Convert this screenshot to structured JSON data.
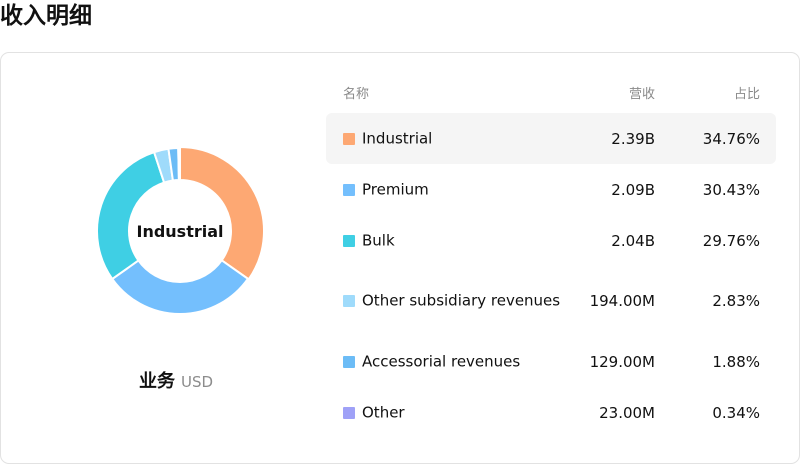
{
  "page": {
    "title": "收入明细"
  },
  "chart_caption": {
    "title": "业务",
    "unit": "USD"
  },
  "table": {
    "headers": {
      "name": "名称",
      "revenue": "营收",
      "share": "占比"
    },
    "rows": [
      {
        "name": "Industrial",
        "revenue": "2.39B",
        "share": "34.76%",
        "color": "#fda873"
      },
      {
        "name": "Premium",
        "revenue": "2.09B",
        "share": "30.43%",
        "color": "#74bffd"
      },
      {
        "name": "Bulk",
        "revenue": "2.04B",
        "share": "29.76%",
        "color": "#3fcfe4"
      },
      {
        "name": "Other subsidiary revenues",
        "revenue": "194.00M",
        "share": "2.83%",
        "color": "#9fdbfb"
      },
      {
        "name": "Accessorial revenues",
        "revenue": "129.00M",
        "share": "1.88%",
        "color": "#6cbcf6"
      },
      {
        "name": "Other",
        "revenue": "23.00M",
        "share": "0.34%",
        "color": "#9fa1f7"
      }
    ]
  },
  "chart_data": {
    "type": "pie",
    "center_label": "Industrial",
    "categories": [
      "Industrial",
      "Premium",
      "Bulk",
      "Other subsidiary revenues",
      "Accessorial revenues",
      "Other"
    ],
    "values": [
      34.76,
      30.43,
      29.76,
      2.83,
      1.88,
      0.34
    ],
    "colors": [
      "#fda873",
      "#74bffd",
      "#3fcfe4",
      "#9fdbfb",
      "#6cbcf6",
      "#9fa1f7"
    ],
    "highlighted": "Industrial"
  }
}
